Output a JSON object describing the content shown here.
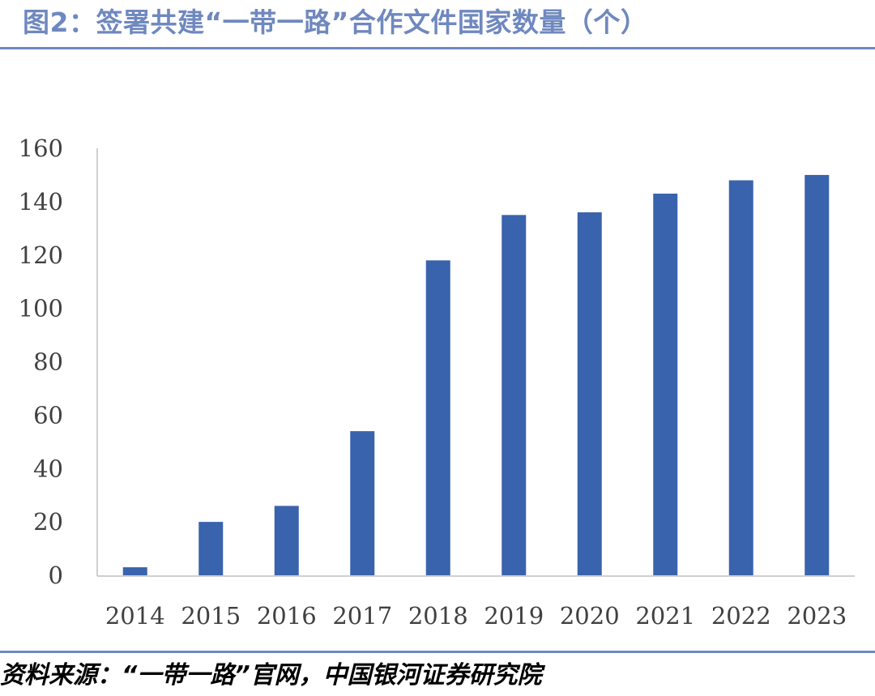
{
  "header": {
    "title": "图2：签署共建“一带一路”合作文件国家数量（个）"
  },
  "footer": {
    "source": "资料来源：“一带一路”官网，中国银河证券研究院"
  },
  "colors": {
    "accent": "#6f88bf",
    "bar": "#3a63ad",
    "axis": "#bfbfbf",
    "tick_text": "#404040"
  },
  "chart_data": {
    "type": "bar",
    "categories": [
      "2014",
      "2015",
      "2016",
      "2017",
      "2018",
      "2019",
      "2020",
      "2021",
      "2022",
      "2023"
    ],
    "values": [
      3,
      20,
      26,
      54,
      118,
      135,
      136,
      143,
      148,
      150
    ],
    "title": "",
    "xlabel": "",
    "ylabel": "",
    "ylim": [
      0,
      160
    ],
    "yticks": [
      0,
      20,
      40,
      60,
      80,
      100,
      120,
      140,
      160
    ],
    "grid": false,
    "legend": "none"
  }
}
